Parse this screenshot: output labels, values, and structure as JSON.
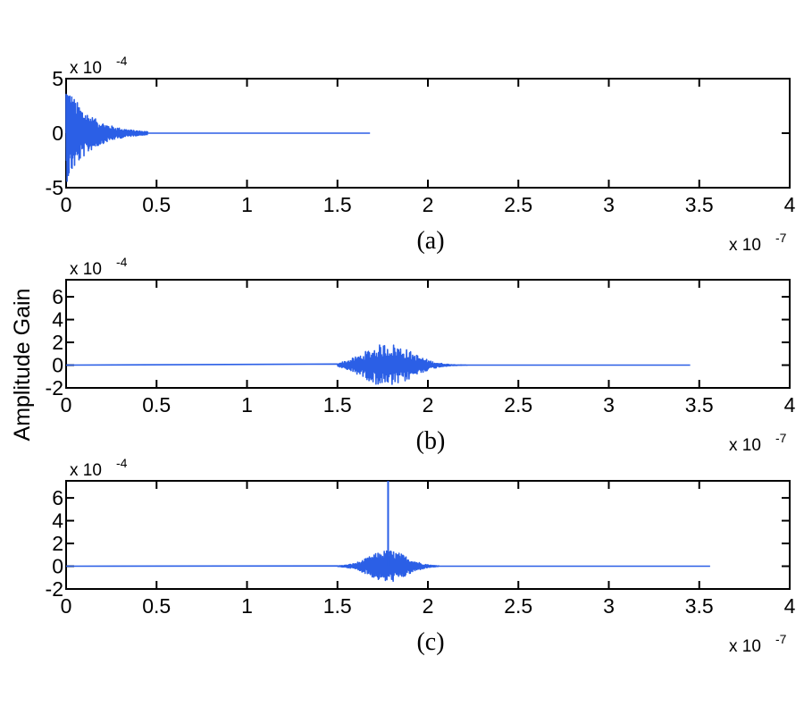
{
  "figure": {
    "ylabel": "Amplitude Gain",
    "line_color": "#2b5fe6"
  },
  "chart_data": [
    {
      "type": "line",
      "panel_label": "(a)",
      "xlim": [
        0,
        4
      ],
      "ylim": [
        -5,
        5
      ],
      "x_ticks": [
        0,
        0.5,
        1,
        1.5,
        2,
        2.5,
        3,
        3.5,
        4
      ],
      "x_tick_labels": [
        "0",
        "0.5",
        "1",
        "1.5",
        "2",
        "2.5",
        "3",
        "3.5",
        "4"
      ],
      "y_ticks": [
        -5,
        0,
        5
      ],
      "y_tick_labels": [
        "-5",
        "0",
        "5"
      ],
      "x_multiplier": "x 10",
      "x_multiplier_exp": "-7",
      "y_multiplier": "x 10",
      "y_multiplier_exp": "-4",
      "grid": false,
      "signal": {
        "description": "decaying oscillation starting at x=0",
        "start": 0,
        "end": 1.68,
        "burst_start": 0.0,
        "burst_end": 0.45,
        "burst_peak_amplitude": 4.6,
        "envelope": "exponential decay",
        "spike": null
      }
    },
    {
      "type": "line",
      "panel_label": "(b)",
      "xlim": [
        0,
        4
      ],
      "ylim": [
        -2,
        7.5
      ],
      "x_ticks": [
        0,
        0.5,
        1,
        1.5,
        2,
        2.5,
        3,
        3.5,
        4
      ],
      "x_tick_labels": [
        "0",
        "0.5",
        "1",
        "1.5",
        "2",
        "2.5",
        "3",
        "3.5",
        "4"
      ],
      "y_ticks": [
        -2,
        0,
        2,
        4,
        6
      ],
      "y_tick_labels": [
        "-2",
        "0",
        "2",
        "4",
        "6"
      ],
      "x_multiplier": "x 10",
      "x_multiplier_exp": "-7",
      "y_multiplier": "x 10",
      "y_multiplier_exp": "-4",
      "grid": false,
      "signal": {
        "description": "noisy burst centred near x=1.78",
        "start": 0,
        "end": 3.45,
        "burst_start": 1.5,
        "burst_end": 2.22,
        "burst_center": 1.78,
        "burst_peak_amplitude": 1.9,
        "envelope": "gaussian",
        "spike": null
      }
    },
    {
      "type": "line",
      "panel_label": "(c)",
      "xlim": [
        0,
        4
      ],
      "ylim": [
        -2,
        7.5
      ],
      "x_ticks": [
        0,
        0.5,
        1,
        1.5,
        2,
        2.5,
        3,
        3.5,
        4
      ],
      "x_tick_labels": [
        "0",
        "0.5",
        "1",
        "1.5",
        "2",
        "2.5",
        "3",
        "3.5",
        "4"
      ],
      "y_ticks": [
        -2,
        0,
        2,
        4,
        6
      ],
      "y_tick_labels": [
        "-2",
        "0",
        "2",
        "4",
        "6"
      ],
      "x_multiplier": "x 10",
      "x_multiplier_exp": "-7",
      "y_multiplier": "x 10",
      "y_multiplier_exp": "-4",
      "grid": false,
      "signal": {
        "description": "noisy burst with a sharp spike at x=1.78",
        "start": 0,
        "end": 3.56,
        "burst_start": 1.5,
        "burst_end": 2.06,
        "burst_center": 1.78,
        "burst_peak_amplitude": 1.4,
        "envelope": "gaussian",
        "spike": {
          "x": 1.78,
          "y": 7.5
        }
      }
    }
  ]
}
